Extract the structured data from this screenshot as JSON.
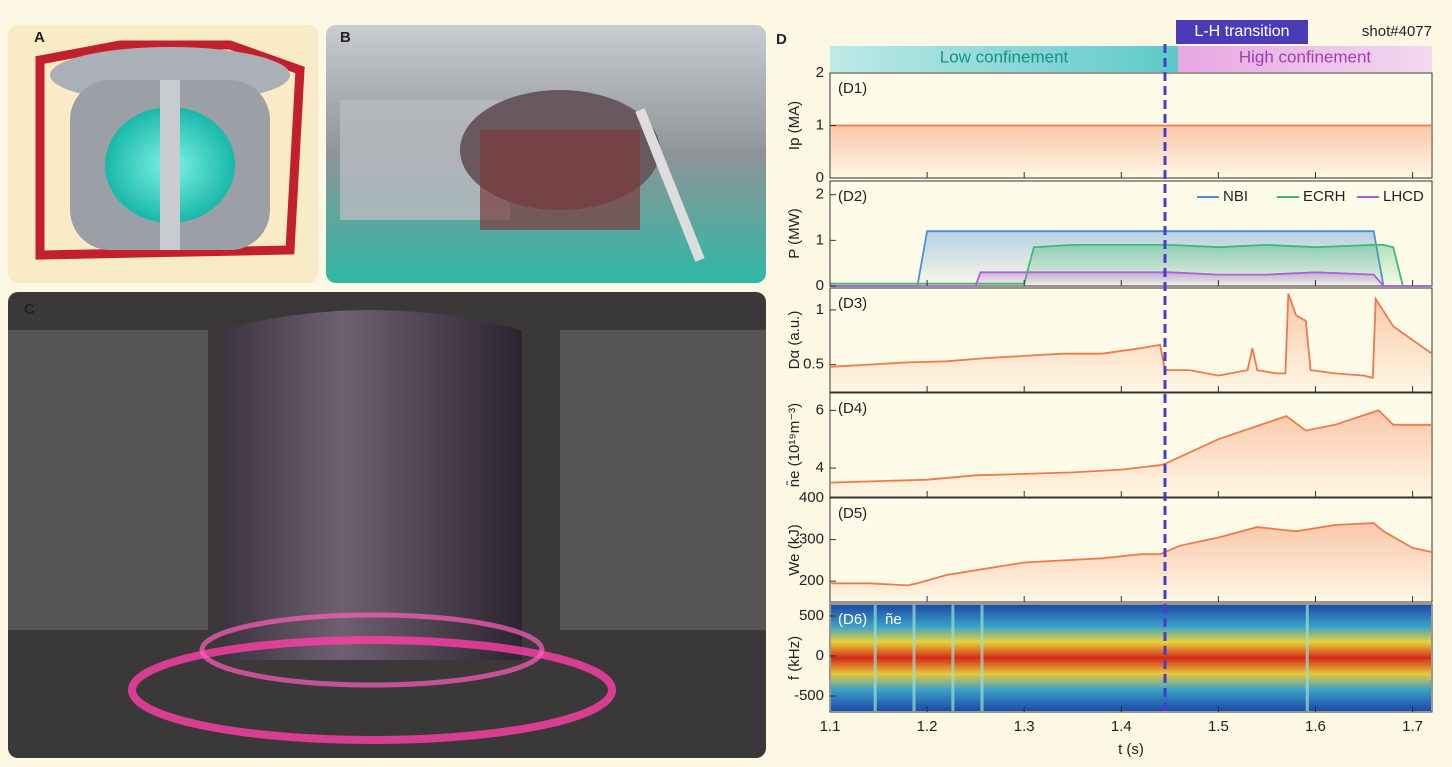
{
  "panels": {
    "a": "A",
    "b": "B",
    "c": "C",
    "d": "D"
  },
  "banner": {
    "low": "Low confinement",
    "high": "High confinement",
    "shot": "shot#4077"
  },
  "transition": {
    "x": 1.445,
    "label": "L-H transition"
  },
  "chart_data": [
    {
      "type": "line",
      "title": "(D1)",
      "ylabel": "Ip (MA)",
      "color": "#f07a4a",
      "x": [
        1.1,
        1.72
      ],
      "values": [
        1,
        1
      ],
      "xlim": [
        1.1,
        1.72
      ],
      "xticks": [
        1.1,
        1.2,
        1.3,
        1.4,
        1.5,
        1.6,
        1.7
      ],
      "ylim": [
        0,
        2
      ],
      "yticks": [
        0,
        1,
        2
      ]
    },
    {
      "type": "line",
      "title": "(D2)",
      "ylabel": "P (MW)",
      "legend": "upper right",
      "x": [
        1.1,
        1.19,
        1.2,
        1.25,
        1.255,
        1.3,
        1.31,
        1.35,
        1.4,
        1.45,
        1.5,
        1.55,
        1.6,
        1.66,
        1.67,
        1.68,
        1.69,
        1.72
      ],
      "series": [
        {
          "name": "NBI",
          "color": "#4a90d9",
          "values": [
            0,
            0,
            1.2,
            1.2,
            1.2,
            1.2,
            1.2,
            1.2,
            1.2,
            1.2,
            1.2,
            1.2,
            1.2,
            1.2,
            0,
            0,
            0,
            0
          ]
        },
        {
          "name": "ECRH",
          "color": "#3dbb72",
          "values": [
            0.05,
            0.05,
            0.05,
            0.05,
            0.05,
            0.05,
            0.85,
            0.9,
            0.9,
            0.9,
            0.85,
            0.9,
            0.85,
            0.9,
            0.9,
            0.85,
            0,
            0
          ]
        },
        {
          "name": "LHCD",
          "color": "#b061d6",
          "values": [
            0,
            0,
            0,
            0,
            0.3,
            0.3,
            0.3,
            0.3,
            0.3,
            0.3,
            0.25,
            0.25,
            0.3,
            0.25,
            0,
            0,
            0,
            0
          ]
        }
      ],
      "xlim": [
        1.1,
        1.72
      ],
      "xticks": [
        1.1,
        1.2,
        1.3,
        1.4,
        1.5,
        1.6,
        1.7
      ],
      "ylim": [
        0,
        2.3
      ],
      "yticks": [
        0,
        1,
        2
      ]
    },
    {
      "type": "line",
      "title": "(D3)",
      "ylabel": "Dα (a.u.)",
      "color": "#f07a4a",
      "x": [
        1.1,
        1.14,
        1.18,
        1.22,
        1.26,
        1.3,
        1.34,
        1.38,
        1.42,
        1.44,
        1.445,
        1.47,
        1.5,
        1.53,
        1.535,
        1.54,
        1.56,
        1.569,
        1.572,
        1.58,
        1.59,
        1.595,
        1.62,
        1.65,
        1.659,
        1.662,
        1.68,
        1.72
      ],
      "values": [
        0.48,
        0.5,
        0.52,
        0.53,
        0.56,
        0.58,
        0.6,
        0.6,
        0.65,
        0.68,
        0.45,
        0.45,
        0.4,
        0.45,
        0.65,
        0.45,
        0.42,
        0.42,
        1.15,
        0.95,
        0.9,
        0.45,
        0.42,
        0.4,
        0.38,
        1.1,
        0.85,
        0.6
      ],
      "xlim": [
        1.1,
        1.72
      ],
      "xticks": [
        1.1,
        1.2,
        1.3,
        1.4,
        1.5,
        1.6,
        1.7
      ],
      "ylim": [
        0.25,
        1.2
      ],
      "yticks": [
        0.5,
        1
      ]
    },
    {
      "type": "line",
      "title": "(D4)",
      "ylabel": "n̄e (10¹⁹m⁻³)",
      "color": "#f07a4a",
      "x": [
        1.1,
        1.15,
        1.2,
        1.25,
        1.3,
        1.35,
        1.4,
        1.44,
        1.445,
        1.5,
        1.57,
        1.59,
        1.62,
        1.665,
        1.68,
        1.72
      ],
      "values": [
        3.5,
        3.55,
        3.6,
        3.75,
        3.8,
        3.85,
        3.95,
        4.1,
        4.15,
        5.0,
        5.8,
        5.3,
        5.5,
        6.0,
        5.5,
        5.5
      ],
      "xlim": [
        1.1,
        1.72
      ],
      "xticks": [
        1.1,
        1.2,
        1.3,
        1.4,
        1.5,
        1.6,
        1.7
      ],
      "ylim": [
        3,
        6.6
      ],
      "yticks": [
        4,
        6
      ]
    },
    {
      "type": "line",
      "title": "(D5)",
      "ylabel": "We (kJ)",
      "color": "#f07a4a",
      "x": [
        1.1,
        1.14,
        1.18,
        1.19,
        1.22,
        1.26,
        1.3,
        1.34,
        1.38,
        1.42,
        1.44,
        1.46,
        1.5,
        1.54,
        1.58,
        1.62,
        1.66,
        1.67,
        1.7,
        1.72
      ],
      "values": [
        195,
        195,
        190,
        195,
        215,
        230,
        245,
        250,
        255,
        265,
        265,
        285,
        305,
        330,
        320,
        335,
        340,
        320,
        280,
        270
      ],
      "xlim": [
        1.1,
        1.72
      ],
      "xticks": [
        1.1,
        1.2,
        1.3,
        1.4,
        1.5,
        1.6,
        1.7
      ],
      "ylim": [
        150,
        400
      ],
      "yticks": [
        200,
        300,
        400
      ]
    },
    {
      "type": "spectrogram",
      "title": "(D6)",
      "annotation": "ñe",
      "ylabel": "f (kHz)",
      "xlabel": "t (s)",
      "xlim": [
        1.1,
        1.72
      ],
      "xticks": [
        1.1,
        1.2,
        1.3,
        1.4,
        1.5,
        1.6,
        1.7
      ],
      "ylim": [
        -700,
        650
      ],
      "yticks": [
        -500,
        0,
        500
      ]
    }
  ]
}
